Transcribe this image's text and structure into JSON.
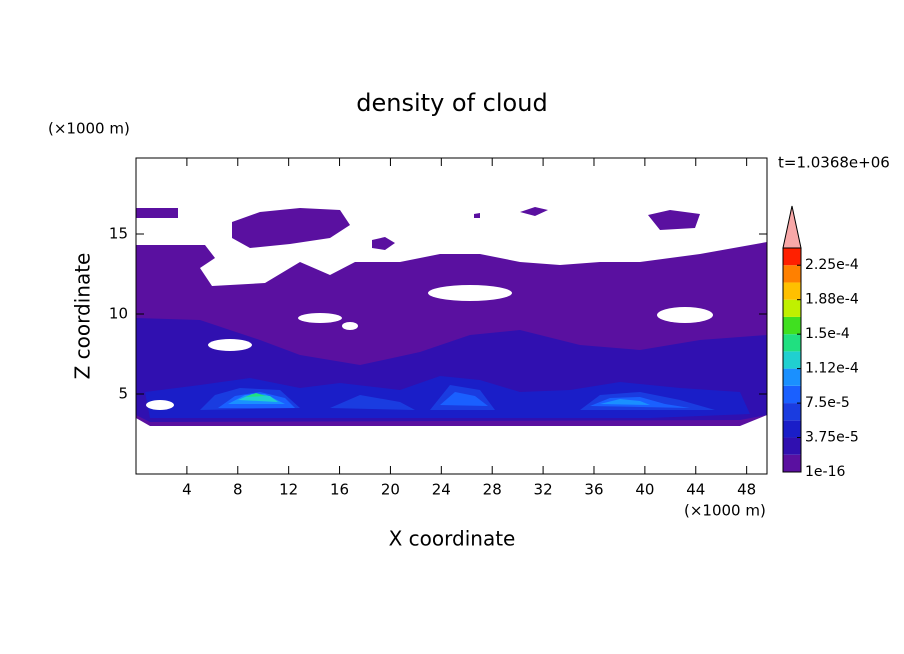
{
  "chart_data": {
    "type": "contour",
    "title": "density of cloud",
    "x_label": "X coordinate",
    "y_label": "Z coordinate",
    "x_unit": "(×1000 m)",
    "y_unit": "(×1000 m)",
    "annotation": "t=1.0368e+06",
    "xlim": [
      0,
      49.6
    ],
    "xticks": [
      4,
      8,
      12,
      16,
      20,
      24,
      28,
      32,
      36,
      40,
      44,
      48
    ],
    "ylim": [
      0,
      19.75
    ],
    "yticks": [
      5,
      10,
      15
    ],
    "colorbar": {
      "levels": [
        1e-16,
        1.875e-05,
        3.75e-05,
        5.625e-05,
        7.5e-05,
        9.375e-05,
        0.0001125,
        0.00013125,
        0.00015,
        0.00016875,
        0.0001875,
        0.00020625,
        0.000225,
        0.00024375
      ],
      "colors": [
        "#5a10a0",
        "#3010b0",
        "#1a1ec8",
        "#1a3ce0",
        "#1a60ff",
        "#1a90ff",
        "#20d0d0",
        "#20e080",
        "#40e020",
        "#c0f000",
        "#ffc000",
        "#ff8000",
        "#ff2000"
      ],
      "extend_color": "#f8a8a8",
      "ticks": [
        {
          "value": 1e-16,
          "label": "1e-16"
        },
        {
          "value": 3.75e-05,
          "label": "3.75e-5"
        },
        {
          "value": 7.5e-05,
          "label": "7.5e-5"
        },
        {
          "value": 0.0001125,
          "label": "1.12e-4"
        },
        {
          "value": 0.00015,
          "label": "1.5e-4"
        },
        {
          "value": 0.0001875,
          "label": "1.88e-4"
        },
        {
          "value": 0.000225,
          "label": "2.25e-4"
        }
      ]
    }
  }
}
